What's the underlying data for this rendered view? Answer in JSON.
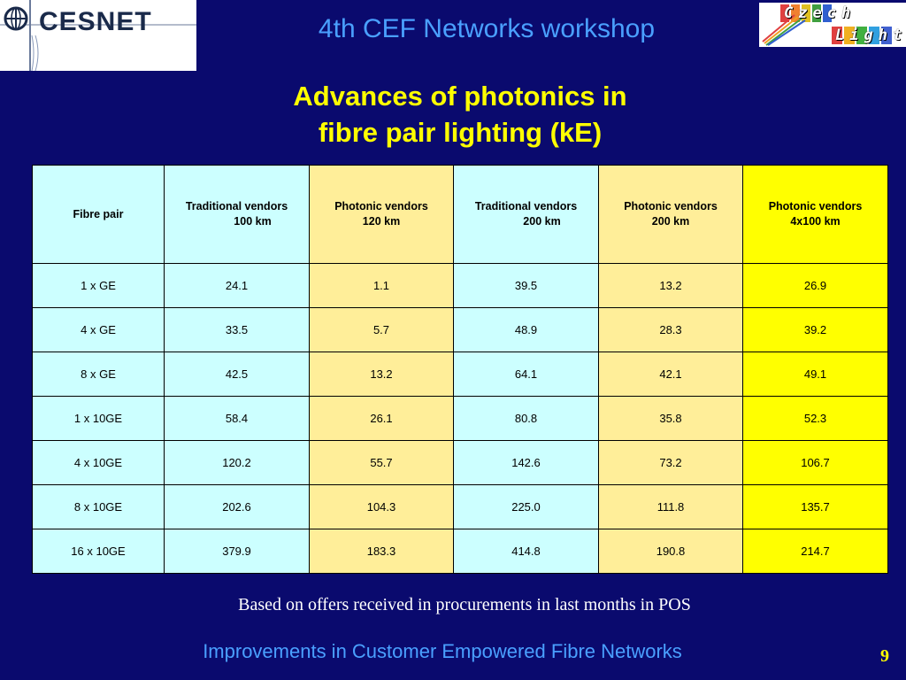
{
  "header": {
    "left_logo": "CESNET",
    "workshop": "4th CEF Networks workshop",
    "right_logo_line1": "Czech",
    "right_logo_line2": "Light"
  },
  "title": {
    "line1": "Advances of photonics in",
    "line2": "fibre pair lighting (kE)"
  },
  "table": {
    "headers": [
      [
        "Fibre pair",
        ""
      ],
      [
        "Traditional vendors",
        "100 km"
      ],
      [
        "Photonic vendors",
        "120 km"
      ],
      [
        "Traditional vendors",
        "200 km"
      ],
      [
        "Photonic vendors",
        "200 km"
      ],
      [
        "Photonic vendors",
        "4x100 km"
      ]
    ],
    "rows": [
      [
        "1 x GE",
        "24.1",
        "1.1",
        "39.5",
        "13.2",
        "26.9"
      ],
      [
        "4 x GE",
        "33.5",
        "5.7",
        "48.9",
        "28.3",
        "39.2"
      ],
      [
        "8 x GE",
        "42.5",
        "13.2",
        "64.1",
        "42.1",
        "49.1"
      ],
      [
        "1 x 10GE",
        "58.4",
        "26.1",
        "80.8",
        "35.8",
        "52.3"
      ],
      [
        "4 x 10GE",
        "120.2",
        "55.7",
        "142.6",
        "73.2",
        "106.7"
      ],
      [
        "8 x 10GE",
        "202.6",
        "104.3",
        "225.0",
        "111.8",
        "135.7"
      ],
      [
        "16 x 10GE",
        "379.9",
        "183.3",
        "414.8",
        "190.8",
        "214.7"
      ]
    ],
    "column_colors": [
      "#ccffff",
      "#ccffff",
      "#ffee99",
      "#ccffff",
      "#ffee99",
      "#ffff00"
    ]
  },
  "note": "Based on offers received in procurements in last months in POS",
  "footer": {
    "text": "Improvements in Customer Empowered Fibre Networks",
    "page": "9"
  }
}
